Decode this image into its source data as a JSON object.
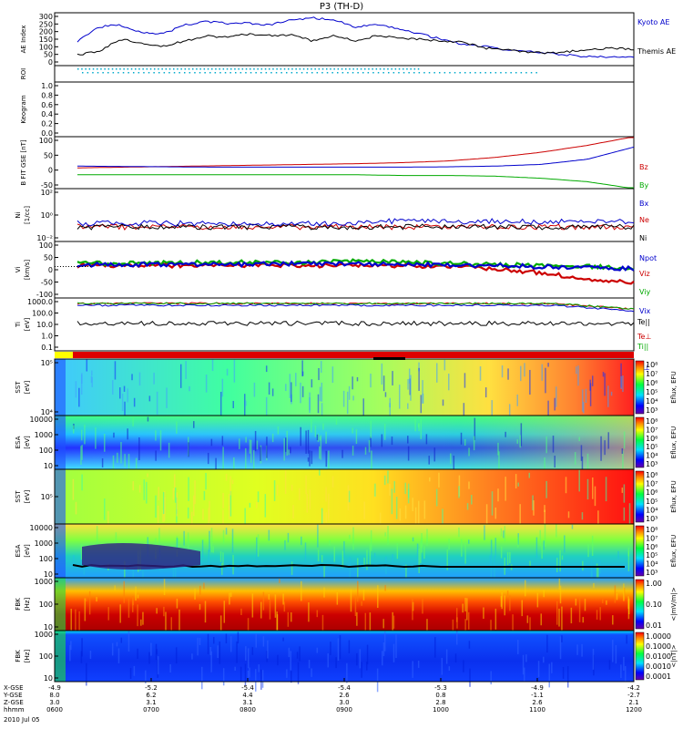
{
  "title": "P3 (TH-D)",
  "chart_data": [
    {
      "panel": "ae",
      "type": "line",
      "ylabel": "AE Index",
      "ylim": [
        0,
        300
      ],
      "ticks": [
        "300",
        "250",
        "200",
        "150",
        "100",
        "50",
        "0"
      ],
      "series": [
        {
          "name": "Kyoto AE",
          "color": "#0000cc",
          "values": [
            140,
            220,
            230,
            190,
            180,
            230,
            250,
            240,
            240,
            230,
            260,
            270,
            260,
            220,
            230,
            210,
            180,
            150,
            120,
            110,
            90,
            80,
            70,
            60,
            50,
            50,
            45
          ]
        },
        {
          "name": "Themis AE",
          "color": "#000000",
          "values": [
            60,
            80,
            150,
            130,
            110,
            140,
            170,
            160,
            180,
            170,
            175,
            140,
            170,
            140,
            170,
            155,
            150,
            140,
            135,
            100,
            90,
            75,
            70,
            80,
            90,
            100,
            90
          ]
        }
      ]
    },
    {
      "panel": "roi",
      "type": "line",
      "ylabel": "ROI"
    },
    {
      "panel": "keogram",
      "type": "line",
      "ylabel": "Keogram",
      "ylim": [
        0,
        1
      ],
      "ticks": [
        "1.0",
        "0.8",
        "0.6",
        "0.4",
        "0.2",
        "0.0"
      ]
    },
    {
      "panel": "bfield",
      "type": "line",
      "ylabel": "B FIT GSE [nT]",
      "ylim": [
        -50,
        100
      ],
      "ticks": [
        "100",
        "50",
        "0",
        "-50"
      ],
      "series": [
        {
          "name": "Bz",
          "color": "#cc0000",
          "values": [
            10,
            12,
            14,
            16,
            18,
            20,
            22,
            25,
            30,
            40,
            55,
            75,
            100
          ]
        },
        {
          "name": "By",
          "color": "#00aa00",
          "values": [
            -10,
            -10,
            -10,
            -10,
            -10,
            -10,
            -10,
            -12,
            -12,
            -14,
            -20,
            -30,
            -50
          ]
        },
        {
          "name": "Bx",
          "color": "#0000cc",
          "values": [
            15,
            14,
            13,
            12,
            12,
            12,
            12,
            12,
            13,
            15,
            20,
            35,
            70
          ]
        }
      ]
    },
    {
      "panel": "density",
      "type": "line",
      "ylabel": "Ni",
      "unit": "[1/cc]",
      "ticks": [
        "10²",
        "10⁰",
        "10⁻²"
      ],
      "series": [
        {
          "name": "Ne",
          "color": "#cc0000"
        },
        {
          "name": "Ni",
          "color": "#000000"
        },
        {
          "name": "Npot",
          "color": "#0000cc"
        }
      ]
    },
    {
      "panel": "velocity",
      "type": "line",
      "ylabel": "Vi",
      "unit": "[km/s]",
      "ylim": [
        -150,
        120
      ],
      "ticks": [
        "100",
        "50",
        "0",
        "-50",
        "-100"
      ],
      "series": [
        {
          "name": "Viz",
          "color": "#cc0000",
          "values": [
            5,
            5,
            5,
            5,
            5,
            5,
            5,
            5,
            0,
            -10,
            -30,
            -60,
            -80
          ]
        },
        {
          "name": "Viy",
          "color": "#00aa00",
          "values": [
            15,
            15,
            18,
            20,
            20,
            20,
            25,
            20,
            15,
            10,
            5,
            0,
            -10
          ]
        },
        {
          "name": "Vix",
          "color": "#0000cc",
          "values": [
            10,
            10,
            10,
            10,
            12,
            15,
            15,
            10,
            8,
            5,
            0,
            -5,
            -10
          ]
        }
      ]
    },
    {
      "panel": "temperature",
      "type": "line",
      "ylabel": "Ti",
      "unit": "[eV]",
      "ticks": [
        "1000.0",
        "100.0",
        "10.0",
        "1.0",
        "0.1"
      ],
      "series": [
        {
          "name": "Te||",
          "color": "#000000"
        },
        {
          "name": "Te⊥",
          "color": "#cc0000"
        },
        {
          "name": "Ti||",
          "color": "#00aa00"
        },
        {
          "name": "Ti⊥",
          "color": "#0000cc"
        }
      ]
    },
    {
      "panel": "sst-electron",
      "type": "heatmap",
      "ylabel": "SST",
      "unit": "[eV]",
      "ticks": [
        "10⁵",
        "10⁴"
      ],
      "colorbar_label": "Eflux, EFU",
      "colorbar_ticks": [
        "10⁸",
        "10⁷",
        "10⁶",
        "10⁵",
        "10⁴",
        "10³"
      ]
    },
    {
      "panel": "esa-electron",
      "type": "heatmap",
      "ylabel": "ESA",
      "unit": "[eV]",
      "ticks": [
        "10000",
        "1000",
        "100",
        "10"
      ],
      "colorbar_label": "Eflux, EFU",
      "colorbar_ticks": [
        "10⁸",
        "10⁷",
        "10⁶",
        "10⁵",
        "10⁴",
        "10³"
      ]
    },
    {
      "panel": "sst-ion",
      "type": "heatmap",
      "ylabel": "SST",
      "unit": "[eV]",
      "ticks": [
        "10⁵"
      ],
      "colorbar_label": "Eflux, EFU",
      "colorbar_ticks": [
        "10⁸",
        "10⁷",
        "10⁶",
        "10⁵",
        "10⁴",
        "10³"
      ]
    },
    {
      "panel": "esa-ion",
      "type": "heatmap",
      "ylabel": "ESA",
      "unit": "[eV]",
      "ticks": [
        "10000",
        "1000",
        "100",
        "10"
      ],
      "colorbar_label": "Eflux, EFU",
      "colorbar_ticks": [
        "10⁸",
        "10⁷",
        "10⁶",
        "10⁵",
        "10⁴",
        "10³"
      ]
    },
    {
      "panel": "fbk-e",
      "type": "heatmap",
      "ylabel": "FBK",
      "unit": "[Hz]",
      "ticks": [
        "1000",
        "100",
        "10"
      ],
      "colorbar_label": "<|mV/m|>",
      "colorbar_ticks": [
        "1.00",
        "0.10",
        "0.01"
      ]
    },
    {
      "panel": "fbk-b",
      "type": "heatmap",
      "ylabel": "FBK",
      "unit": "[Hz]",
      "ticks": [
        "1000",
        "100",
        "10"
      ],
      "colorbar_label": "<|nT|>",
      "colorbar_ticks": [
        "1.0000",
        "0.1000",
        "0.0100",
        "0.0010",
        "0.0001"
      ]
    }
  ],
  "xaxis": {
    "row_labels": [
      "X-GSE",
      "Y-GSE",
      "Z-GSE",
      "hhmm",
      "2010 Jul 05"
    ],
    "columns": [
      {
        "x": "-4.9",
        "y": "8.0",
        "z": "3.0",
        "t": "0600"
      },
      {
        "x": "-5.2",
        "y": "6.2",
        "z": "3.1",
        "t": "0700"
      },
      {
        "x": "-5.4",
        "y": "4.4",
        "z": "3.1",
        "t": "0800"
      },
      {
        "x": "-5.4",
        "y": "2.6",
        "z": "3.0",
        "t": "0900"
      },
      {
        "x": "-5.3",
        "y": "0.8",
        "z": "2.8",
        "t": "1000"
      },
      {
        "x": "-4.9",
        "y": "-1.1",
        "z": "2.6",
        "t": "1100"
      },
      {
        "x": "-4.2",
        "y": "-2.7",
        "z": "2.1",
        "t": "1200"
      }
    ]
  }
}
